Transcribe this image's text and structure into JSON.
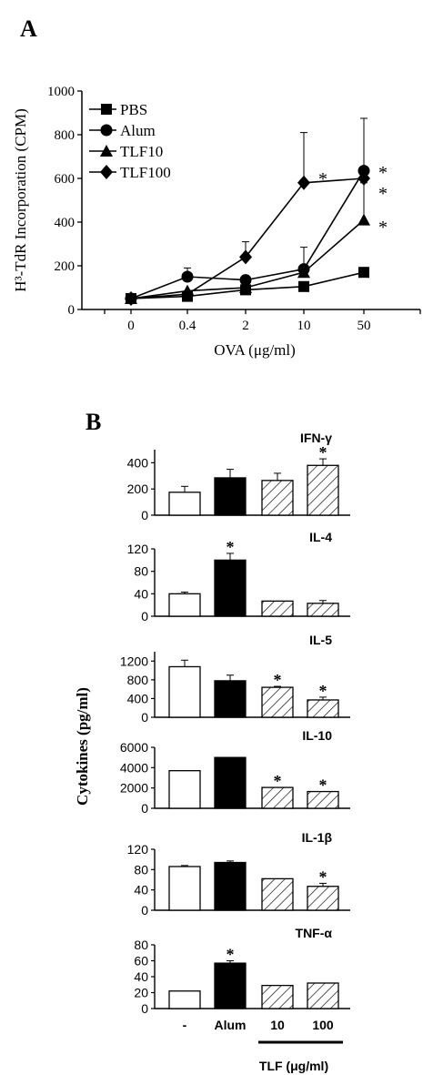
{
  "panel_a_label": "A",
  "panel_b_label": "B",
  "chart_data": [
    {
      "type": "line",
      "panel": "A",
      "xlabel": "OVA (μg/ml)",
      "ylabel": "H³-TdR Incorporation (CPM)",
      "categories": [
        "0",
        "0.4",
        "2",
        "10",
        "50"
      ],
      "ylim": [
        0,
        1000
      ],
      "yticks": [
        "0",
        "200",
        "400",
        "600",
        "800",
        "1000"
      ],
      "legend_position": "top-left",
      "colors": {
        "line": "#000000"
      },
      "series": [
        {
          "name": "PBS",
          "marker": "square",
          "values": [
            50,
            60,
            90,
            105,
            170
          ],
          "errors": [
            0,
            0,
            0,
            0,
            0
          ]
        },
        {
          "name": "Alum",
          "marker": "circle",
          "values": [
            50,
            150,
            135,
            185,
            635
          ],
          "errors": [
            0,
            40,
            0,
            100,
            240
          ]
        },
        {
          "name": "TLF10",
          "marker": "triangle",
          "values": [
            50,
            85,
            100,
            170,
            410
          ],
          "errors": [
            0,
            0,
            55,
            0,
            170
          ]
        },
        {
          "name": "TLF100",
          "marker": "diamond",
          "values": [
            50,
            70,
            240,
            580,
            600
          ],
          "errors": [
            0,
            0,
            70,
            230,
            0
          ]
        }
      ],
      "annotations": [
        {
          "text": "*",
          "x": "10",
          "y": 620
        },
        {
          "text": "*",
          "x": "50",
          "y": 650
        },
        {
          "text": "*",
          "x": "50",
          "y": 555
        },
        {
          "text": "*",
          "x": "50",
          "y": 400
        }
      ]
    },
    {
      "type": "bar",
      "panel": "B",
      "ylabel": "Cytokines (pg/ml)",
      "categories": [
        "-",
        "Alum",
        "10",
        "100"
      ],
      "group_label": "TLF (μg/ml)",
      "colors": {
        "control": "#ffffff",
        "alum": "#000000",
        "tlf": "hatched"
      },
      "subplots": [
        {
          "title": "IFN-γ",
          "ylim": [
            0,
            500
          ],
          "yticks": [
            "0",
            "200",
            "400"
          ],
          "values": [
            175,
            285,
            265,
            380
          ],
          "errors": [
            45,
            65,
            55,
            50
          ],
          "stars": [
            false,
            false,
            false,
            true
          ]
        },
        {
          "title": "IL-4",
          "ylim": [
            0,
            120
          ],
          "yticks": [
            "0",
            "40",
            "80",
            "120"
          ],
          "values": [
            40,
            100,
            27,
            23
          ],
          "errors": [
            3,
            12,
            0,
            5
          ],
          "stars": [
            false,
            true,
            false,
            false
          ]
        },
        {
          "title": "IL-5",
          "ylim": [
            0,
            1400
          ],
          "yticks": [
            "0",
            "400",
            "800",
            "1200"
          ],
          "values": [
            1080,
            780,
            640,
            370
          ],
          "errors": [
            140,
            120,
            20,
            60
          ],
          "stars": [
            false,
            false,
            true,
            true
          ]
        },
        {
          "title": "IL-10",
          "ylim": [
            0,
            6000
          ],
          "yticks": [
            "0",
            "2000",
            "4000",
            "6000"
          ],
          "values": [
            3700,
            5000,
            2050,
            1650
          ],
          "errors": [
            0,
            0,
            0,
            0
          ],
          "stars": [
            false,
            false,
            true,
            true
          ]
        },
        {
          "title": "IL-1β",
          "ylim": [
            0,
            120
          ],
          "yticks": [
            "0",
            "40",
            "80",
            "120"
          ],
          "values": [
            86,
            94,
            62,
            47
          ],
          "errors": [
            2,
            3,
            0,
            6
          ],
          "stars": [
            false,
            false,
            false,
            true
          ]
        },
        {
          "title": "TNF-α",
          "ylim": [
            0,
            80
          ],
          "yticks": [
            "0",
            "20",
            "40",
            "60",
            "80"
          ],
          "values": [
            22,
            57,
            29,
            32
          ],
          "errors": [
            0,
            3,
            0,
            0
          ],
          "stars": [
            false,
            true,
            false,
            false
          ]
        }
      ]
    }
  ]
}
